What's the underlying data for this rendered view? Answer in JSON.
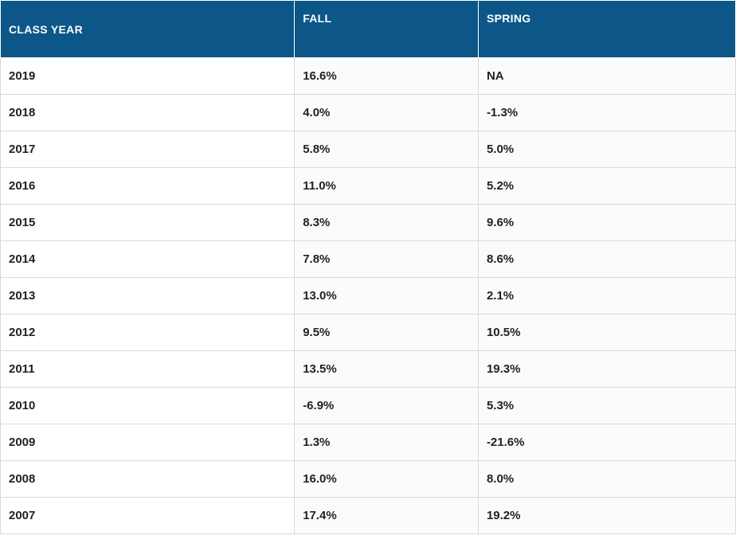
{
  "table": {
    "columns": [
      "CLASS YEAR",
      "FALL",
      "SPRING"
    ],
    "header_bg": "#0c5788",
    "header_fg": "#ffffff",
    "cell_border": "#d9d9d9",
    "cell_bg_year": "#ffffff",
    "cell_bg_data": "#fbfbfb",
    "font_size_header": 14,
    "font_size_cell": 15,
    "rows": [
      {
        "year": "2019",
        "fall": "16.6%",
        "spring": "NA"
      },
      {
        "year": "2018",
        "fall": "4.0%",
        "spring": "-1.3%"
      },
      {
        "year": "2017",
        "fall": "5.8%",
        "spring": "5.0%"
      },
      {
        "year": "2016",
        "fall": "11.0%",
        "spring": "5.2%"
      },
      {
        "year": "2015",
        "fall": "8.3%",
        "spring": "9.6%"
      },
      {
        "year": "2014",
        "fall": "7.8%",
        "spring": "8.6%"
      },
      {
        "year": "2013",
        "fall": "13.0%",
        "spring": "2.1%"
      },
      {
        "year": "2012",
        "fall": "9.5%",
        "spring": "10.5%"
      },
      {
        "year": "2011",
        "fall": "13.5%",
        "spring": "19.3%"
      },
      {
        "year": "2010",
        "fall": "-6.9%",
        "spring": "5.3%"
      },
      {
        "year": "2009",
        "fall": "1.3%",
        "spring": "-21.6%"
      },
      {
        "year": "2008",
        "fall": "16.0%",
        "spring": "8.0%"
      },
      {
        "year": "2007",
        "fall": "17.4%",
        "spring": "19.2%"
      }
    ]
  }
}
